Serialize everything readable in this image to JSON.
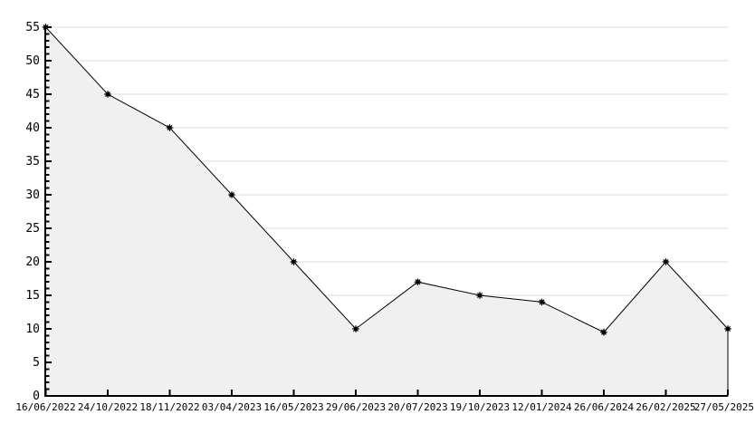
{
  "chart_data": {
    "type": "area",
    "title": "",
    "xlabel": "",
    "ylabel": "",
    "categories": [
      "16/06/2022",
      "24/10/2022",
      "18/11/2022",
      "03/04/2023",
      "16/05/2023",
      "29/06/2023",
      "20/07/2023",
      "19/10/2023",
      "12/01/2024",
      "26/06/2024",
      "26/02/2025",
      "27/05/2025"
    ],
    "values": [
      55,
      45,
      40,
      30,
      20,
      10,
      17,
      15,
      14,
      9.5,
      20,
      10
    ],
    "ylim": [
      0,
      55
    ],
    "y_major_step": 5,
    "y_minor_step": 1,
    "y_tick_labels": [
      "0",
      "5",
      "10",
      "15",
      "20",
      "25",
      "30",
      "35",
      "40",
      "45",
      "50",
      "55"
    ],
    "grid": "horizontal-major",
    "legend": "none",
    "marker": "star-dot",
    "colors": {
      "background": "#ffffff",
      "area_fill": "#f0f0f0",
      "line": "#000000",
      "marker": "#000000",
      "grid": "#dcdcdc",
      "axis": "#000000",
      "tick_label": "#000000"
    }
  }
}
